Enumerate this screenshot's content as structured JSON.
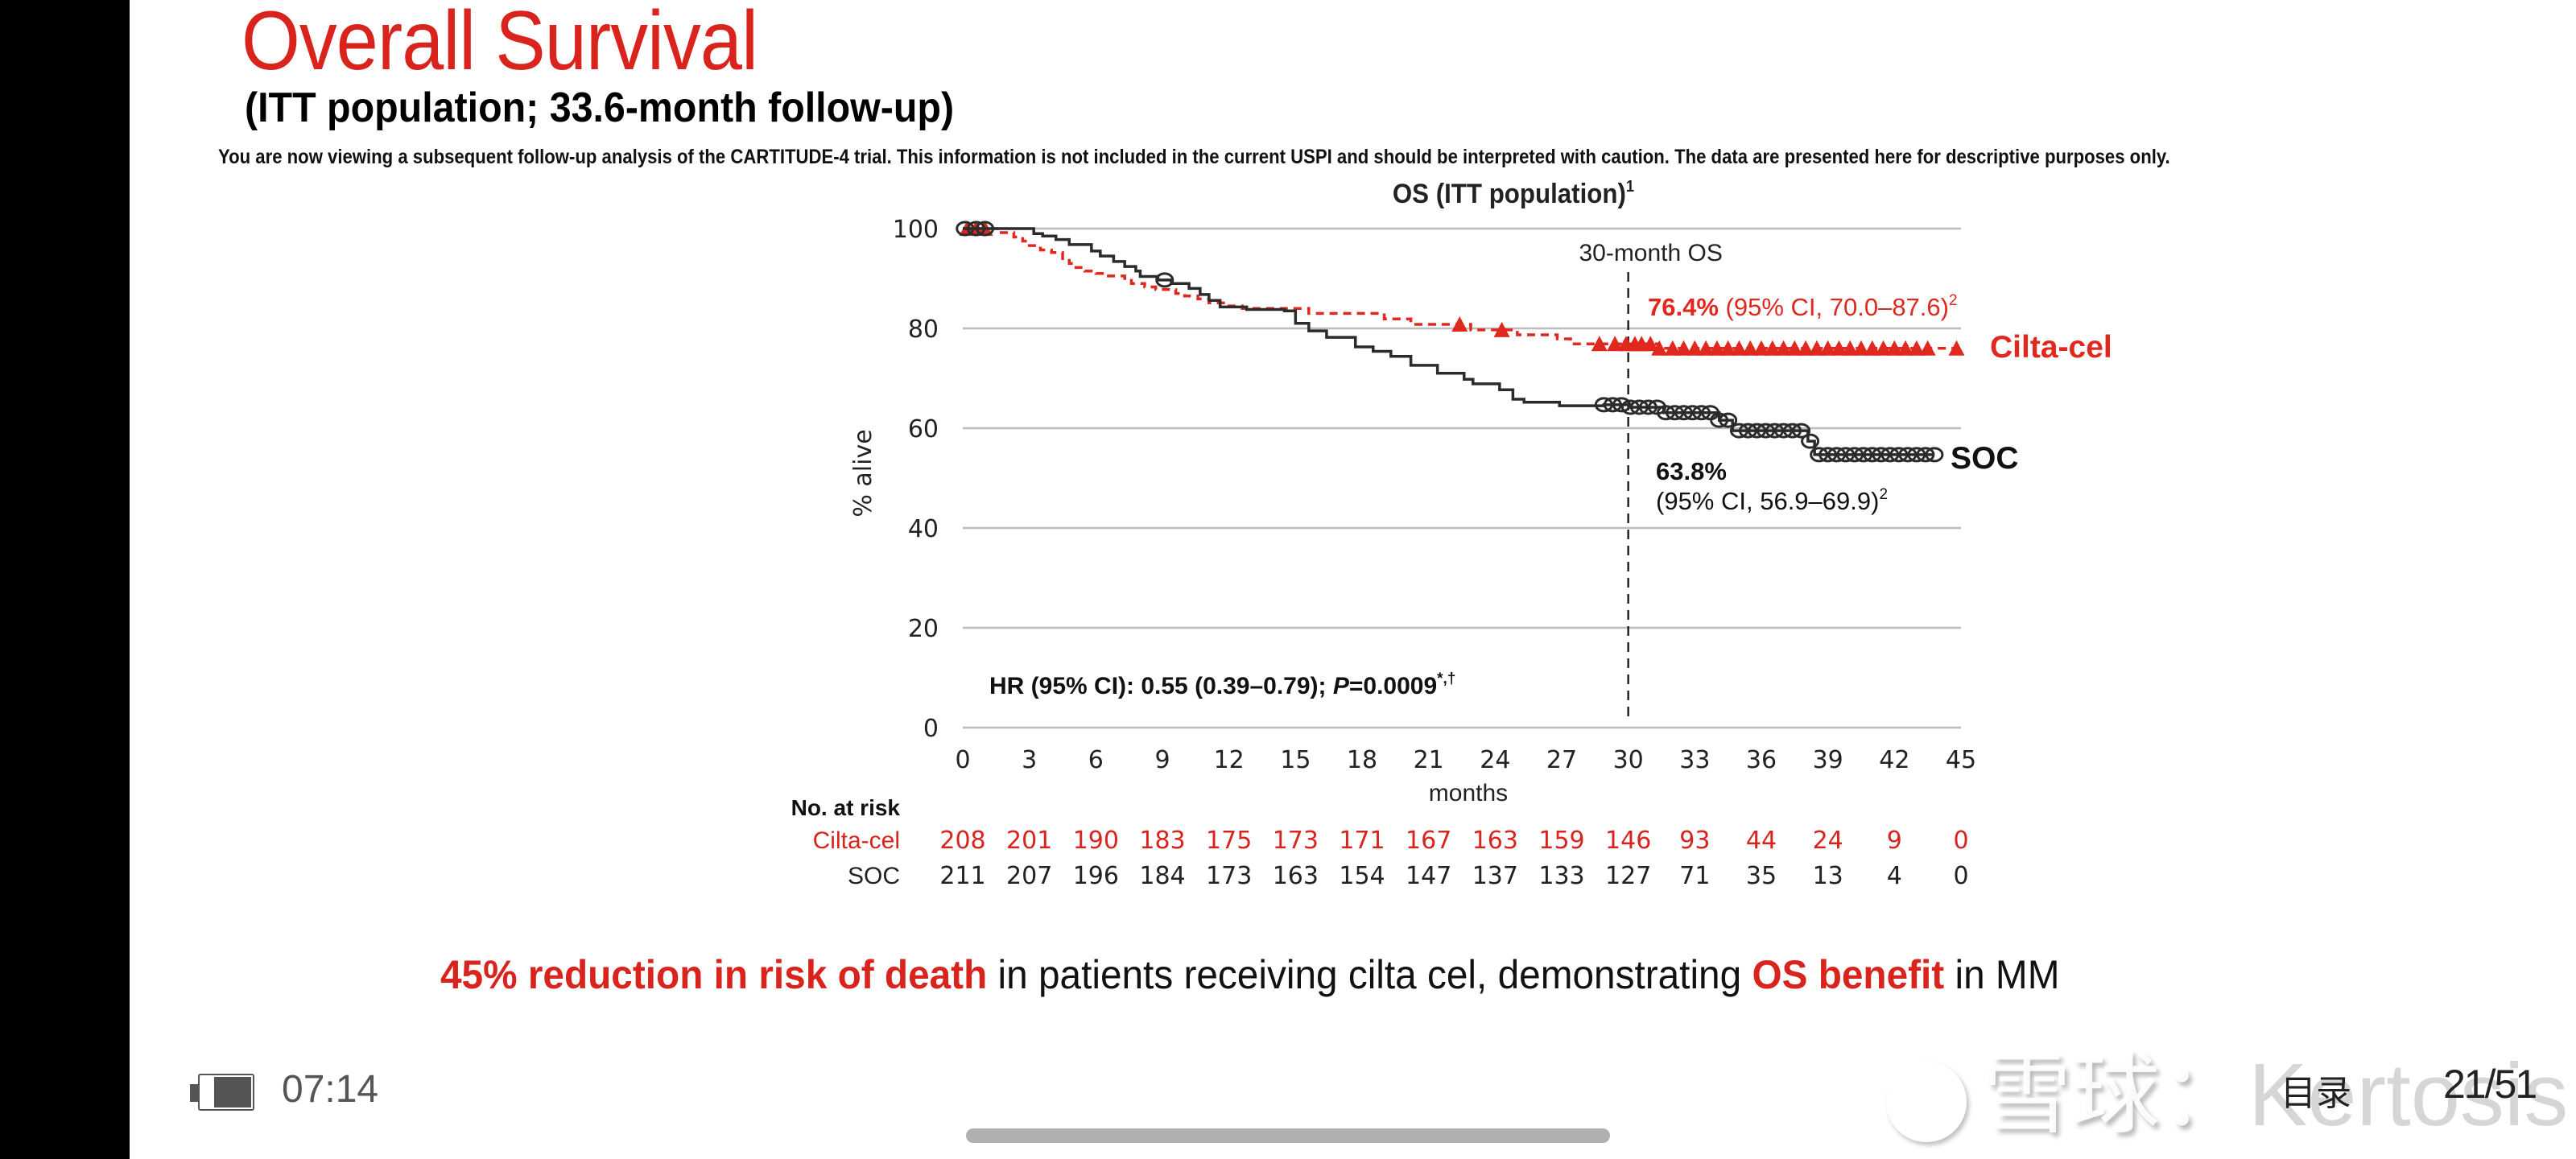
{
  "slide": {
    "title": "Overall Survival",
    "subtitle": "(ITT population; 33.6-month follow-up)",
    "disclaimer": "You are now viewing a subsequent follow-up analysis of the CARTITUDE-4 trial. This information is not included in the current USPI and should be interpreted with caution. The data are presented here for descriptive purposes only.",
    "headline": {
      "part1_red": "45% reduction in risk of death",
      "part2": " in patients receiving cilta cel, demonstrating ",
      "part3_red": "OS benefit",
      "part4": " in MM"
    }
  },
  "colors": {
    "brand_red": "#d9231d",
    "cilta_cel": "#e0281f",
    "soc": "#2b2b2b",
    "gridline": "#bdbdbd"
  },
  "chart_data": {
    "type": "line",
    "subtype": "kaplan-meier",
    "title": "OS (ITT population)",
    "title_superscript": "1",
    "xlabel": "months",
    "ylabel": "% alive",
    "xlim": [
      0,
      45
    ],
    "ylim": [
      0,
      100
    ],
    "xticks": [
      0,
      3,
      6,
      9,
      12,
      15,
      18,
      21,
      24,
      27,
      30,
      33,
      36,
      39,
      42,
      45
    ],
    "yticks": [
      0,
      20,
      40,
      60,
      80,
      100
    ],
    "grid": "horizontal",
    "reference_line": {
      "x": 30,
      "label": "30-month OS",
      "style": "dashed"
    },
    "series": [
      {
        "name": "Cilta-cel",
        "style": "dashed",
        "censor_marker": "triangle",
        "steps": [
          [
            0,
            100
          ],
          [
            1.6,
            99.2
          ],
          [
            2.3,
            98.3
          ],
          [
            2.7,
            97.5
          ],
          [
            3.0,
            96.6
          ],
          [
            3.5,
            95.7
          ],
          [
            4.0,
            95.2
          ],
          [
            4.5,
            94.0
          ],
          [
            4.8,
            93.0
          ],
          [
            5.1,
            92.2
          ],
          [
            5.5,
            91.5
          ],
          [
            6.0,
            91.0
          ],
          [
            6.4,
            90.5
          ],
          [
            7.3,
            90.0
          ],
          [
            7.6,
            89.0
          ],
          [
            8.2,
            88.3
          ],
          [
            8.7,
            87.8
          ],
          [
            9.6,
            87.0
          ],
          [
            10.0,
            86.5
          ],
          [
            10.6,
            85.9
          ],
          [
            11.1,
            85.1
          ],
          [
            11.9,
            84.5
          ],
          [
            12.6,
            84.0
          ],
          [
            15.6,
            83.0
          ],
          [
            19.0,
            81.9
          ],
          [
            20.2,
            80.8
          ],
          [
            22.9,
            79.7
          ],
          [
            25.0,
            78.7
          ],
          [
            26.8,
            77.9
          ],
          [
            27.4,
            76.9
          ],
          [
            31.4,
            76.0
          ],
          [
            45,
            76.0
          ]
        ],
        "censored": [
          0.2,
          0.6,
          1.0,
          22.4,
          24.3,
          28.7,
          29.4,
          29.9,
          30.3,
          30.6,
          31.0,
          31.4,
          32,
          32.5,
          33,
          33.5,
          34,
          34.5,
          35,
          35.5,
          36,
          36.5,
          37,
          37.5,
          38,
          38.5,
          39,
          39.5,
          40,
          40.5,
          41,
          41.5,
          42,
          42.5,
          43,
          43.5,
          44.8
        ],
        "annotation": {
          "value": "76.4%",
          "ci": "(95% CI, 70.0–87.6)",
          "superscript": "2"
        },
        "end_label": "Cilta-cel"
      },
      {
        "name": "SOC",
        "style": "solid",
        "censor_marker": "circle",
        "steps": [
          [
            0,
            100
          ],
          [
            3.2,
            99.0
          ],
          [
            3.6,
            98.5
          ],
          [
            4.2,
            97.8
          ],
          [
            4.8,
            96.8
          ],
          [
            5.8,
            95.5
          ],
          [
            6.2,
            94.5
          ],
          [
            6.8,
            93.4
          ],
          [
            7.3,
            92.4
          ],
          [
            7.8,
            91.5
          ],
          [
            8.0,
            90.4
          ],
          [
            8.8,
            89.7
          ],
          [
            9.4,
            89.0
          ],
          [
            10.2,
            88.0
          ],
          [
            10.7,
            86.8
          ],
          [
            11.1,
            85.6
          ],
          [
            11.6,
            84.3
          ],
          [
            12.8,
            83.8
          ],
          [
            14.5,
            83.5
          ],
          [
            15.0,
            81.0
          ],
          [
            15.6,
            79.5
          ],
          [
            16.4,
            78.2
          ],
          [
            17.7,
            76.3
          ],
          [
            18.5,
            75.4
          ],
          [
            19.3,
            74.4
          ],
          [
            20.2,
            72.6
          ],
          [
            21.4,
            71.0
          ],
          [
            22.6,
            69.8
          ],
          [
            23.0,
            68.9
          ],
          [
            24.2,
            67.7
          ],
          [
            24.8,
            65.8
          ],
          [
            25.3,
            65.2
          ],
          [
            26.9,
            64.5
          ],
          [
            28.9,
            64.7
          ],
          [
            30.1,
            64.2
          ],
          [
            31.6,
            63.1
          ],
          [
            34.1,
            61.6
          ],
          [
            34.7,
            59.5
          ],
          [
            38.1,
            57.4
          ],
          [
            38.4,
            54.7
          ],
          [
            43.8,
            54.7
          ]
        ],
        "censored": [
          0.1,
          0.6,
          1.0,
          9.1,
          28.9,
          29.3,
          29.7,
          30.1,
          30.5,
          30.9,
          31.3,
          31.7,
          32.1,
          32.5,
          32.9,
          33.3,
          33.7,
          34.1,
          34.5,
          35.0,
          35.4,
          35.8,
          36.2,
          36.6,
          37.0,
          37.4,
          37.8,
          38.2,
          38.6,
          39.0,
          39.4,
          39.8,
          40.2,
          40.6,
          41.0,
          41.4,
          41.8,
          42.2,
          42.6,
          43.0,
          43.4,
          43.8
        ],
        "annotation": {
          "value": "63.8%",
          "ci": "(95% CI, 56.9–69.9)",
          "superscript": "2"
        },
        "end_label": "SOC"
      }
    ],
    "hr_annotation": {
      "prefix": "HR (95% CI): 0.55 (0.39–0.79); ",
      "p_label": "P",
      "p_value": "=0.0009",
      "superscript": "*,†"
    },
    "risk_table": {
      "title": "No. at risk",
      "rows": [
        {
          "label": "Cilta-cel",
          "values": [
            208,
            201,
            190,
            183,
            175,
            173,
            171,
            167,
            163,
            159,
            146,
            93,
            44,
            24,
            9,
            0
          ]
        },
        {
          "label": "SOC",
          "values": [
            211,
            207,
            196,
            184,
            173,
            163,
            154,
            147,
            137,
            133,
            127,
            71,
            35,
            13,
            4,
            0
          ]
        }
      ]
    }
  },
  "status_bar": {
    "time": "07:14",
    "battery_level": 0.75
  },
  "reader": {
    "toc_label": "目录",
    "page_indicator": "21/51"
  },
  "watermark": {
    "text_cn": "雪球",
    "separator": "：",
    "text_latin": "Kertosis"
  }
}
